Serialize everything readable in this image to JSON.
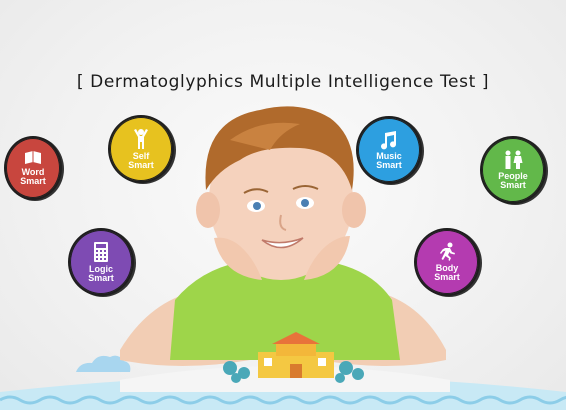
{
  "title": "[ Dermatoglyphics Multiple Intelligence Test ]",
  "badges": {
    "word": {
      "label": "Word Smart",
      "icon": "book-icon",
      "color": "#c8463e"
    },
    "self": {
      "label": "Self Smart",
      "icon": "person-arms-up-icon",
      "color": "#e7c21f"
    },
    "logic": {
      "label": "Logic Smart",
      "icon": "calculator-icon",
      "color": "#7e4bb3"
    },
    "music": {
      "label": "Music Smart",
      "icon": "music-note-icon",
      "color": "#2d9fe0"
    },
    "people": {
      "label": "People Smart",
      "icon": "people-icon",
      "color": "#62b84a"
    },
    "body": {
      "label": "Body Smart",
      "icon": "running-person-icon",
      "color": "#b43bb0"
    }
  }
}
